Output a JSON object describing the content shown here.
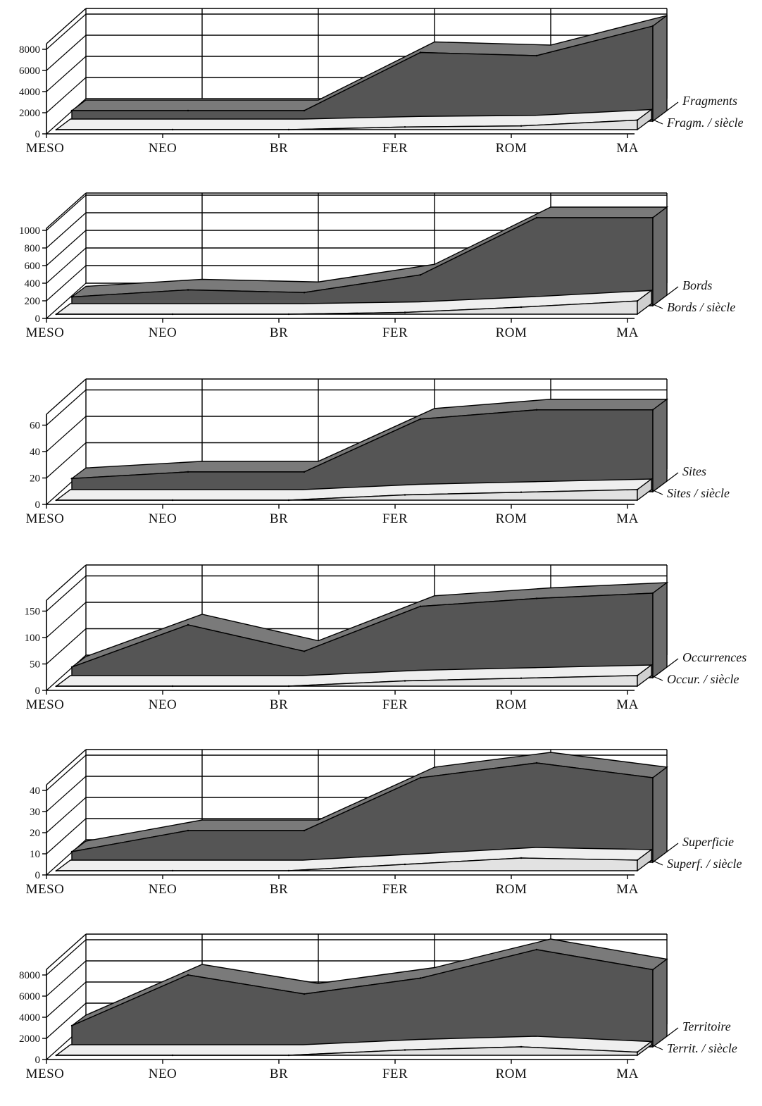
{
  "colors": {
    "dark_series_fill": "#555555",
    "dark_series_top": "#7a7a7a",
    "light_series_fill": "#e2e2e2",
    "light_series_top": "#efefef",
    "line": "#000000",
    "background": "#ffffff"
  },
  "chart_data": [
    {
      "type": "area",
      "categories": [
        "MESO",
        "NEO",
        "BR",
        "FER",
        "ROM",
        "MA"
      ],
      "yticks": [
        0,
        2000,
        4000,
        6000,
        8000
      ],
      "ylim": [
        0,
        10000
      ],
      "grid": true,
      "legend_position": "right",
      "series": [
        {
          "name": "Fragments",
          "values": [
            1000,
            1000,
            1000,
            6500,
            6200,
            9000
          ]
        },
        {
          "name": "Fragm. / siècle",
          "values": [
            0,
            0,
            0,
            250,
            350,
            900
          ]
        }
      ]
    },
    {
      "type": "area",
      "categories": [
        "MESO",
        "NEO",
        "BR",
        "FER",
        "ROM",
        "MA"
      ],
      "yticks": [
        0,
        200,
        400,
        600,
        800,
        1000
      ],
      "ylim": [
        0,
        1200
      ],
      "grid": true,
      "legend_position": "right",
      "series": [
        {
          "name": "Bords",
          "values": [
            100,
            180,
            150,
            350,
            1000,
            1000
          ]
        },
        {
          "name": "Bords / siècle",
          "values": [
            0,
            0,
            0,
            20,
            80,
            150
          ]
        }
      ]
    },
    {
      "type": "area",
      "categories": [
        "MESO",
        "NEO",
        "BR",
        "FER",
        "ROM",
        "MA"
      ],
      "yticks": [
        0,
        20,
        40,
        60
      ],
      "ylim": [
        0,
        80
      ],
      "grid": true,
      "legend_position": "right",
      "series": [
        {
          "name": "Sites",
          "values": [
            10,
            15,
            15,
            55,
            62,
            62
          ]
        },
        {
          "name": "Sites / siècle",
          "values": [
            0,
            0,
            0,
            4,
            6,
            8
          ]
        }
      ]
    },
    {
      "type": "area",
      "categories": [
        "MESO",
        "NEO",
        "BR",
        "FER",
        "ROM",
        "MA"
      ],
      "yticks": [
        0,
        50,
        100,
        150
      ],
      "ylim": [
        0,
        200
      ],
      "grid": true,
      "legend_position": "right",
      "series": [
        {
          "name": "Occurrences",
          "values": [
            20,
            100,
            50,
            135,
            150,
            160
          ]
        },
        {
          "name": "Occur. / siècle",
          "values": [
            0,
            0,
            0,
            10,
            15,
            20
          ]
        }
      ]
    },
    {
      "type": "area",
      "categories": [
        "MESO",
        "NEO",
        "BR",
        "FER",
        "ROM",
        "MA"
      ],
      "yticks": [
        0,
        10,
        20,
        30,
        40
      ],
      "ylim": [
        0,
        50
      ],
      "grid": true,
      "legend_position": "right",
      "series": [
        {
          "name": "Superficie",
          "values": [
            5,
            15,
            15,
            40,
            47,
            40
          ]
        },
        {
          "name": "Superf. / siècle",
          "values": [
            0,
            0,
            0,
            3,
            6,
            5
          ]
        }
      ]
    },
    {
      "type": "area",
      "categories": [
        "MESO",
        "NEO",
        "BR",
        "FER",
        "ROM",
        "MA"
      ],
      "yticks": [
        0,
        2000,
        4000,
        6000,
        8000
      ],
      "ylim": [
        0,
        10000
      ],
      "grid": true,
      "legend_position": "right",
      "series": [
        {
          "name": "Territoire",
          "values": [
            2000,
            6800,
            5000,
            6500,
            9200,
            7300
          ]
        },
        {
          "name": "Territ. / siècle",
          "values": [
            0,
            0,
            0,
            500,
            800,
            300
          ]
        }
      ]
    }
  ]
}
